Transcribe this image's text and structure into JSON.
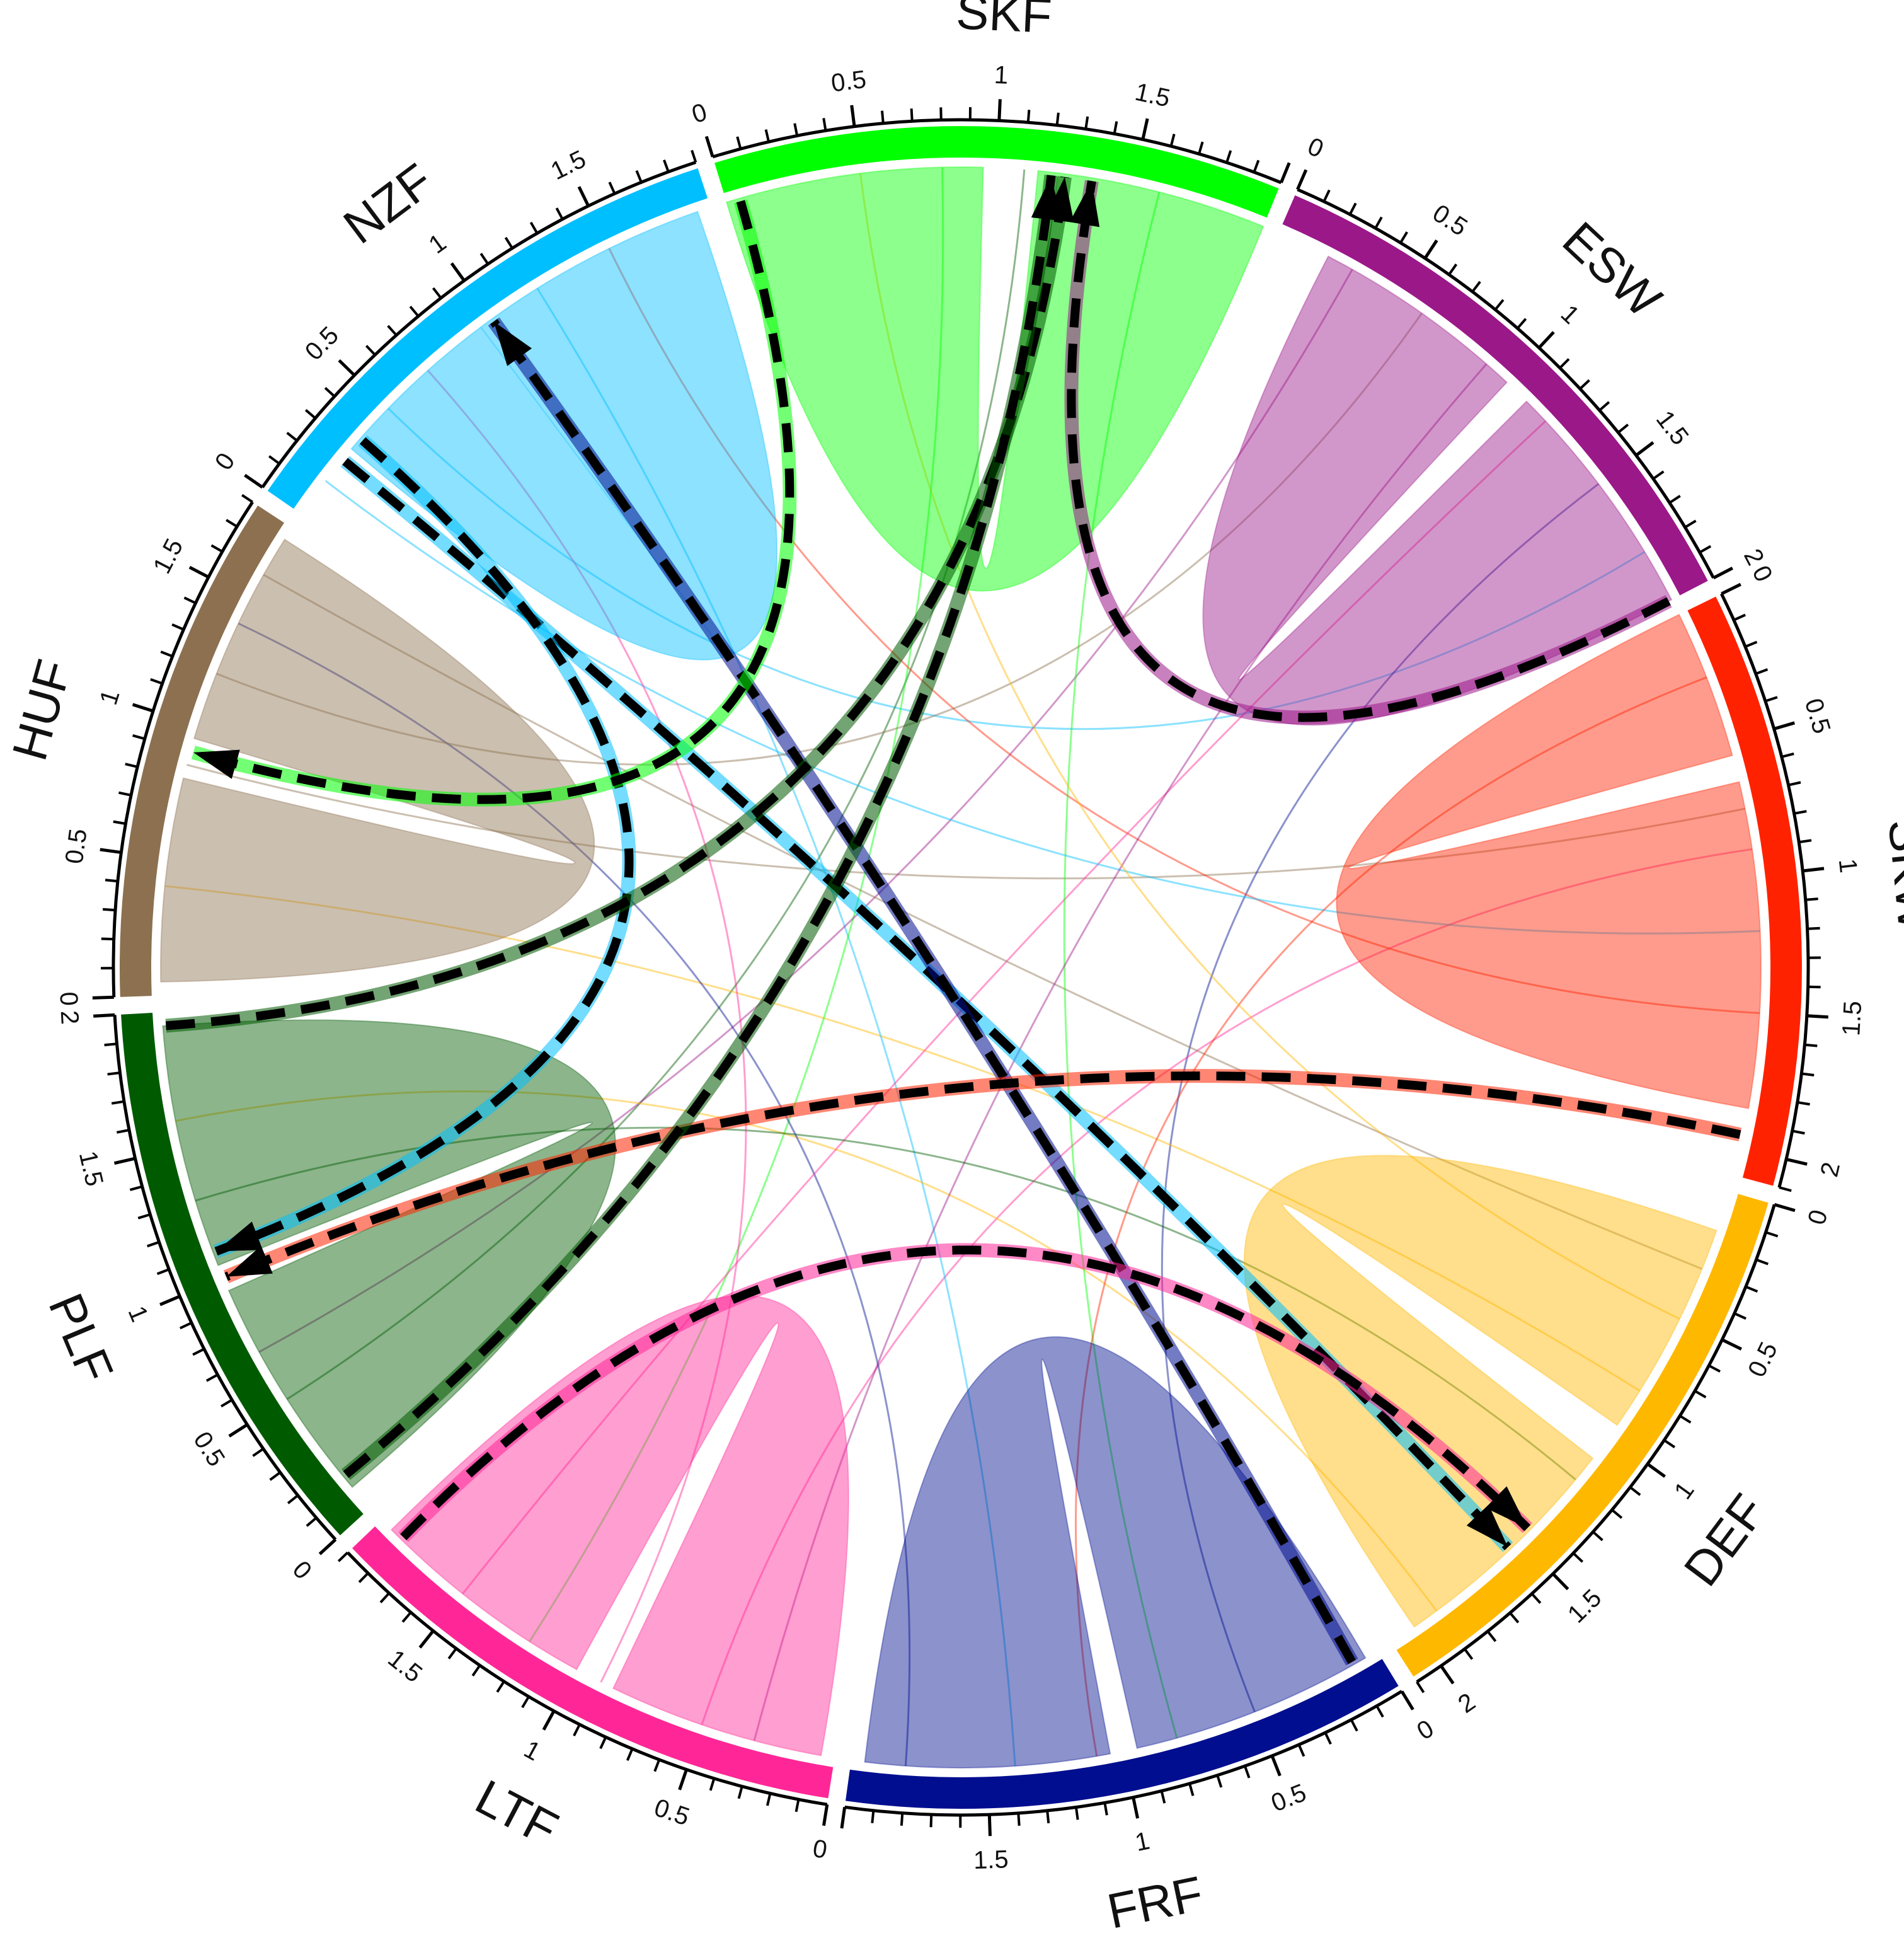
{
  "chart_data": {
    "type": "chord",
    "sectors": [
      {
        "name": "NZF",
        "color": "#00bfff",
        "max": 1.9,
        "ticks": [
          "0",
          "0.5",
          "1",
          "1.5"
        ]
      },
      {
        "name": "SKF",
        "color": "#00ff00",
        "max": 2.0,
        "ticks": [
          "0",
          "0.5",
          "1",
          "1.5"
        ]
      },
      {
        "name": "ESW",
        "color": "#9b1889",
        "max": 2.0,
        "ticks": [
          "0",
          "0.5",
          "1",
          "1.5",
          "2"
        ]
      },
      {
        "name": "SKW",
        "color": "#ff2200",
        "max": 2.1,
        "ticks": [
          "0",
          "0.5",
          "1",
          "1.5",
          "2"
        ]
      },
      {
        "name": "DEF",
        "color": "#ffb800",
        "max": 2.1,
        "ticks": [
          "0",
          "0.5",
          "1",
          "1.5",
          "2"
        ]
      },
      {
        "name": "FRF",
        "color": "#000e8f",
        "max": 2.0,
        "ticks": [
          "0",
          "0.5",
          "1",
          "1.5"
        ]
      },
      {
        "name": "LTF",
        "color": "#ff2797",
        "max": 1.9,
        "ticks": [
          "0",
          "0.5",
          "1",
          "1.5"
        ]
      },
      {
        "name": "PLF",
        "color": "#005a00",
        "max": 2.0,
        "ticks": [
          "0",
          "0.5",
          "1",
          "1.5",
          "2"
        ]
      },
      {
        "name": "HUF",
        "color": "#8c7050",
        "max": 1.8,
        "ticks": [
          "0",
          "0.5",
          "1",
          "1.5"
        ]
      }
    ],
    "self_links": [
      {
        "sector": "NZF",
        "from": [
          0.3,
          0.95
        ],
        "to": [
          0.95,
          1.85
        ]
      },
      {
        "sector": "SKF",
        "from": [
          0.0,
          0.95
        ],
        "to": [
          1.15,
          2.0
        ]
      },
      {
        "sector": "ESW",
        "from": [
          0.2,
          1.0
        ],
        "to": [
          1.1,
          2.0
        ]
      },
      {
        "sector": "SKW",
        "from": [
          0.0,
          0.55
        ],
        "to": [
          0.65,
          1.85
        ]
      },
      {
        "sector": "DEF",
        "from": [
          0.15,
          0.95
        ],
        "to": [
          1.1,
          2.0
        ]
      },
      {
        "sector": "FRF",
        "from": [
          0.05,
          0.95
        ],
        "to": [
          1.05,
          1.95
        ]
      },
      {
        "sector": "LTF",
        "from": [
          0.05,
          0.85
        ],
        "to": [
          1.0,
          1.85
        ]
      },
      {
        "sector": "PLF",
        "from": [
          0.1,
          0.95
        ],
        "to": [
          1.05,
          1.95
        ]
      },
      {
        "sector": "HUF",
        "from": [
          0.05,
          0.8
        ],
        "to": [
          0.95,
          1.75
        ]
      }
    ],
    "dashed_arrows": [
      {
        "from": "NZF",
        "from_pos": 0.25,
        "to": "DEF",
        "to_pos": 1.55
      },
      {
        "from": "NZF",
        "from_pos": 0.35,
        "to": "PLF",
        "to_pos": 1.1
      },
      {
        "from": "FRF",
        "from_pos": 0.1,
        "to": "NZF",
        "to_pos": 1.0
      },
      {
        "from": "SKF",
        "from_pos": 0.05,
        "to": "HUF",
        "to_pos": 0.9
      },
      {
        "from": "ESW",
        "from_pos": 2.0,
        "to": "SKF",
        "to_pos": 1.35
      },
      {
        "from": "PLF",
        "from_pos": 1.95,
        "to": "SKF",
        "to_pos": 1.25
      },
      {
        "from": "LTF",
        "from_pos": 1.8,
        "to": "DEF",
        "to_pos": 1.45
      },
      {
        "from": "SKW",
        "from_pos": 1.95,
        "to": "PLF",
        "to_pos": 1.0
      },
      {
        "from": "PLF",
        "from_pos": 0.15,
        "to": "SKF",
        "to_pos": 1.2
      }
    ],
    "thin_links": [
      {
        "a": "NZF",
        "a_pos": 0.5,
        "b": "ESW",
        "b_pos": 1.8
      },
      {
        "a": "HUF",
        "a_pos": 0.85,
        "b": "SKW",
        "b_pos": 0.75
      },
      {
        "a": "PLF",
        "a_pos": 0.5,
        "b": "SKF",
        "b_pos": 1.1
      },
      {
        "a": "FRF",
        "a_pos": 0.5,
        "b": "ESW",
        "b_pos": 1.5
      },
      {
        "a": "LTF",
        "a_pos": 0.5,
        "b": "SKW",
        "b_pos": 0.9
      },
      {
        "a": "DEF",
        "a_pos": 0.8,
        "b": "HUF",
        "b_pos": 0.4
      },
      {
        "a": "NZF",
        "a_pos": 1.2,
        "b": "FRF",
        "b_pos": 1.4
      },
      {
        "a": "SKF",
        "a_pos": 0.8,
        "b": "LTF",
        "b_pos": 1.2
      },
      {
        "a": "ESW",
        "a_pos": 0.3,
        "b": "PLF",
        "b_pos": 0.7
      },
      {
        "a": "SKW",
        "a_pos": 1.5,
        "b": "NZF",
        "b_pos": 1.5
      },
      {
        "a": "DEF",
        "a_pos": 1.9,
        "b": "PLF",
        "b_pos": 1.6
      },
      {
        "a": "FRF",
        "a_pos": 1.8,
        "b": "HUF",
        "b_pos": 1.4
      },
      {
        "a": "LTF",
        "a_pos": 1.5,
        "b": "ESW",
        "b_pos": 1.2
      },
      {
        "a": "HUF",
        "a_pos": 1.6,
        "b": "DEF",
        "b_pos": 0.3
      },
      {
        "a": "SKF",
        "a_pos": 1.6,
        "b": "FRF",
        "b_pos": 0.8
      },
      {
        "a": "NZF",
        "a_pos": 0.15,
        "b": "SKW",
        "b_pos": 1.2
      },
      {
        "a": "ESW",
        "a_pos": 0.9,
        "b": "LTF",
        "b_pos": 0.3
      },
      {
        "a": "PLF",
        "a_pos": 1.3,
        "b": "DEF",
        "b_pos": 1.2
      },
      {
        "a": "HUF",
        "a_pos": 1.2,
        "b": "ESW",
        "b_pos": 0.6
      },
      {
        "a": "SKW",
        "a_pos": 0.25,
        "b": "FRF",
        "b_pos": 1.1
      },
      {
        "a": "LTF",
        "a_pos": 0.9,
        "b": "NZF",
        "b_pos": 0.7
      },
      {
        "a": "DEF",
        "a_pos": 0.5,
        "b": "SKF",
        "b_pos": 0.5
      }
    ]
  }
}
